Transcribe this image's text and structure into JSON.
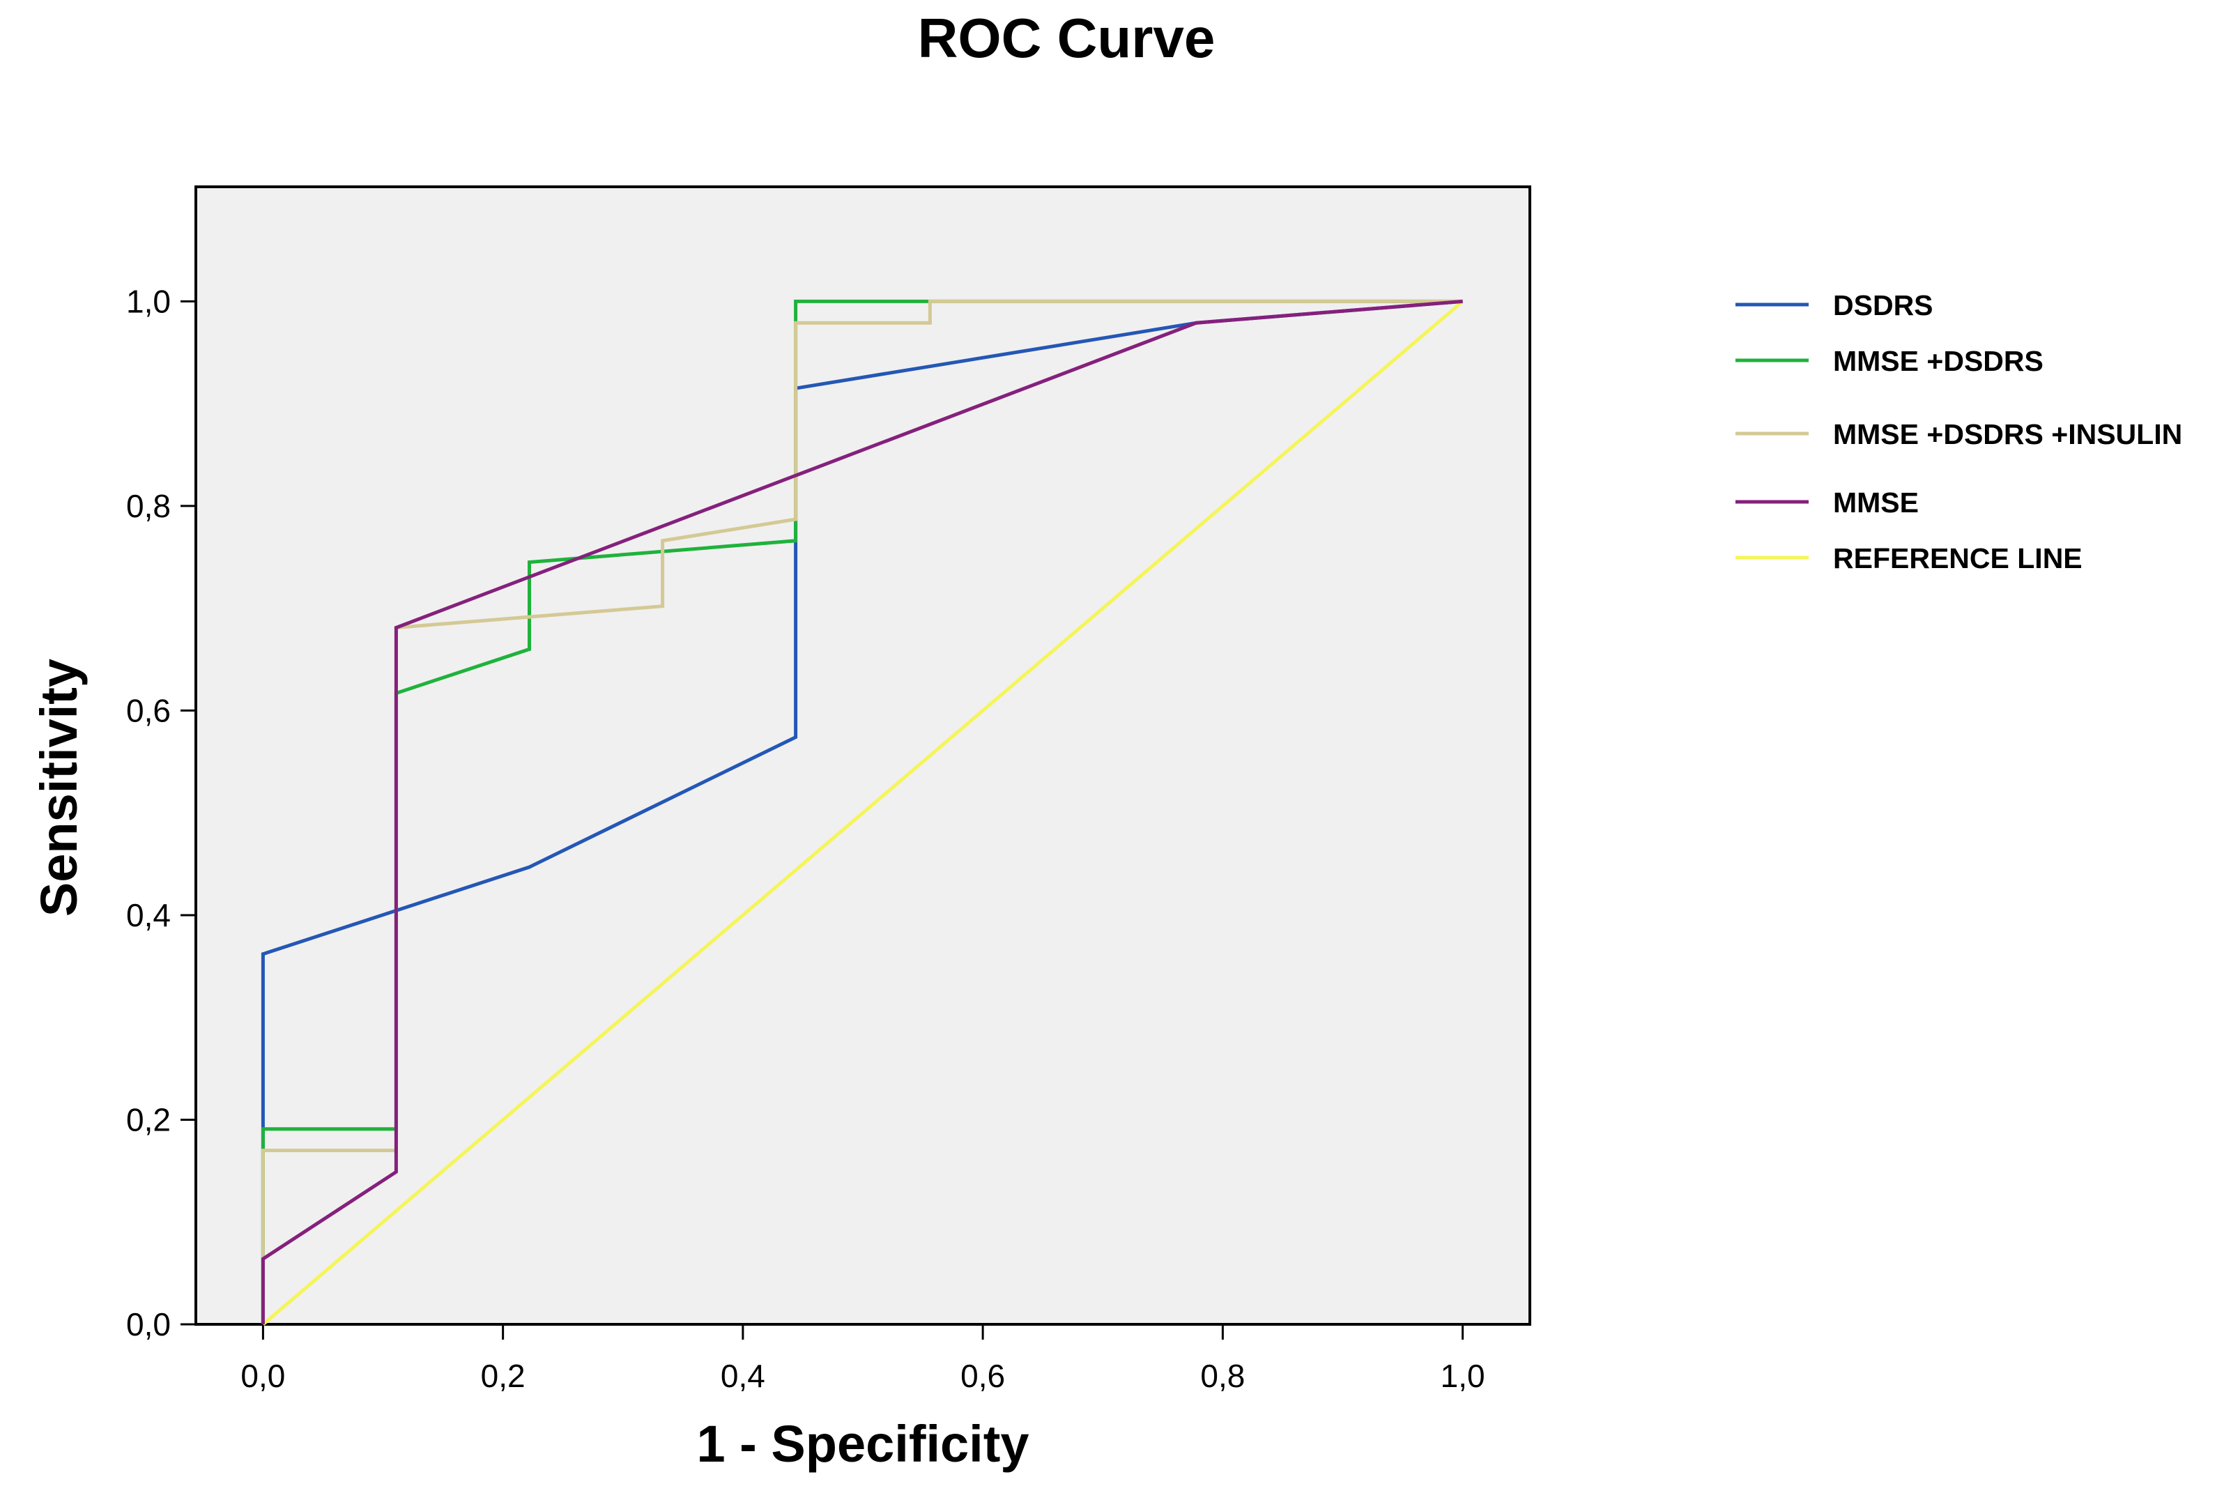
{
  "chart_data": {
    "type": "line",
    "title": "ROC Curve",
    "xlabel": "1 - Specificity",
    "ylabel": "Sensitivity",
    "xlim": [
      -0.056,
      1.056
    ],
    "ylim": [
      0.0,
      1.112
    ],
    "x_ticks": [
      0.0,
      0.2,
      0.4,
      0.6,
      0.8,
      1.0
    ],
    "x_tick_labels": [
      "0,0",
      "0,2",
      "0,4",
      "0,6",
      "0,8",
      "1,0"
    ],
    "y_ticks": [
      0.0,
      0.2,
      0.4,
      0.6,
      0.8,
      1.0
    ],
    "y_tick_labels": [
      "0,0",
      "0,2",
      "0,4",
      "0,6",
      "0,8",
      "1,0"
    ],
    "legend_position": "right",
    "series": [
      {
        "name": "DSDRS",
        "color": "#2457b5",
        "points": [
          [
            0.0,
            0.0
          ],
          [
            0.0,
            0.362
          ],
          [
            0.222,
            0.447
          ],
          [
            0.444,
            0.574
          ],
          [
            0.444,
            0.915
          ],
          [
            0.778,
            0.979
          ],
          [
            1.0,
            1.0
          ]
        ]
      },
      {
        "name": "MMSE +DSDRS",
        "color": "#1fb23c",
        "points": [
          [
            0.0,
            0.0
          ],
          [
            0.0,
            0.191
          ],
          [
            0.111,
            0.191
          ],
          [
            0.111,
            0.617
          ],
          [
            0.222,
            0.66
          ],
          [
            0.222,
            0.745
          ],
          [
            0.444,
            0.766
          ],
          [
            0.444,
            1.0
          ],
          [
            0.556,
            1.0
          ],
          [
            1.0,
            1.0
          ]
        ]
      },
      {
        "name": "MMSE +DSDRS +INSULIN",
        "color": "#d4c995",
        "points": [
          [
            0.0,
            0.0
          ],
          [
            0.0,
            0.17
          ],
          [
            0.111,
            0.17
          ],
          [
            0.111,
            0.681
          ],
          [
            0.333,
            0.702
          ],
          [
            0.333,
            0.766
          ],
          [
            0.444,
            0.787
          ],
          [
            0.444,
            0.979
          ],
          [
            0.556,
            0.979
          ],
          [
            0.556,
            1.0
          ],
          [
            1.0,
            1.0
          ]
        ]
      },
      {
        "name": "MMSE",
        "color": "#85207c",
        "points": [
          [
            0.0,
            0.0
          ],
          [
            0.0,
            0.064
          ],
          [
            0.111,
            0.149
          ],
          [
            0.111,
            0.681
          ],
          [
            0.778,
            0.979
          ],
          [
            1.0,
            1.0
          ]
        ]
      },
      {
        "name": "REFERENCE LINE",
        "color": "#f5f55a",
        "points": [
          [
            0.0,
            0.0
          ],
          [
            1.0,
            1.0
          ]
        ]
      }
    ]
  }
}
